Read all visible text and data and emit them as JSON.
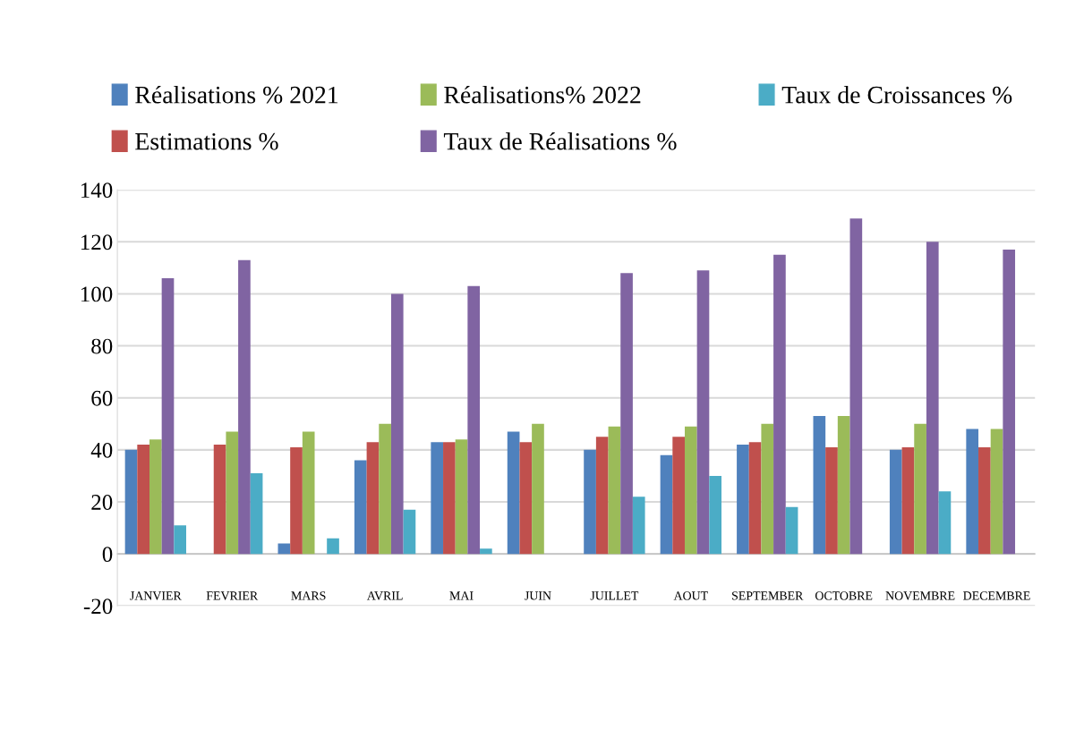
{
  "chart_data": {
    "type": "bar",
    "categories": [
      "JANVIER",
      "FEVRIER",
      "MARS",
      "AVRIL",
      "MAI",
      "JUIN",
      "JUILLET",
      "AOUT",
      "SEPTEMBER",
      "OCTOBRE",
      "NOVEMBRE",
      "DECEMBRE"
    ],
    "series": [
      {
        "name": "Réalisations % 2021",
        "color": "#4f81bd",
        "values": [
          40,
          0,
          4,
          36,
          43,
          47,
          40,
          38,
          42,
          53,
          40,
          48
        ]
      },
      {
        "name": "Estimations %",
        "color": "#c0504d",
        "values": [
          42,
          42,
          41,
          43,
          43,
          43,
          45,
          45,
          43,
          41,
          41,
          41
        ]
      },
      {
        "name": "Réalisations% 2022",
        "color": "#9bbb59",
        "values": [
          44,
          47,
          47,
          50,
          44,
          50,
          49,
          49,
          50,
          53,
          50,
          48
        ]
      },
      {
        "name": "Taux de Réalisations %",
        "color": "#8064a2",
        "values": [
          106,
          113,
          0,
          100,
          103,
          0,
          108,
          109,
          115,
          129,
          120,
          117
        ]
      },
      {
        "name": "Taux de Croissances %",
        "color": "#4bacc6",
        "values": [
          11,
          31,
          6,
          17,
          2,
          0,
          22,
          30,
          18,
          0,
          24,
          0
        ]
      }
    ],
    "ylim": [
      -20,
      140
    ],
    "yticks": [
      -20,
      0,
      20,
      40,
      60,
      80,
      100,
      120,
      140
    ],
    "grid": "y",
    "legend": "top"
  }
}
